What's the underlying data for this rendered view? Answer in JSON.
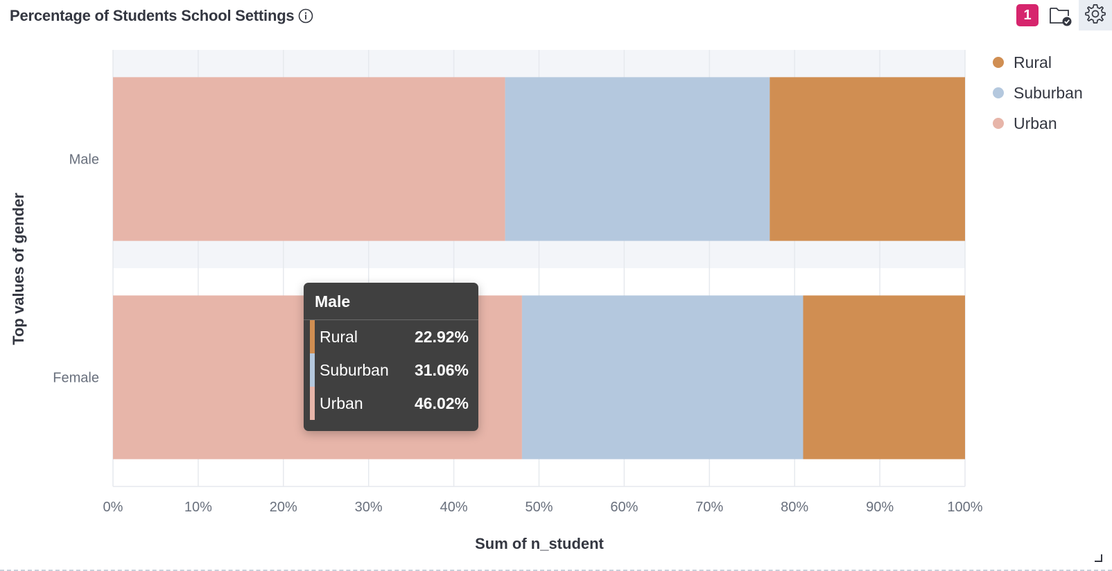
{
  "panel": {
    "title": "Percentage of Students School Settings",
    "notification_count": "1"
  },
  "icons": {
    "info": "info-icon",
    "folder": "folder-check-icon",
    "settings": "gear-icon"
  },
  "chart_data": {
    "type": "bar",
    "orientation": "horizontal",
    "stacked": true,
    "percentage": true,
    "categories": [
      "Male",
      "Female"
    ],
    "series": [
      {
        "name": "Urban",
        "color": "#e7b5a9",
        "values": [
          46.02,
          48.0
        ]
      },
      {
        "name": "Suburban",
        "color": "#b4c8de",
        "values": [
          31.06,
          33.0
        ]
      },
      {
        "name": "Rural",
        "color": "#d08e52",
        "values": [
          22.92,
          19.0
        ]
      }
    ],
    "xlabel": "Sum of n_student",
    "ylabel": "Top values of gender",
    "xlim": [
      0,
      100
    ],
    "x_ticks": [
      "0%",
      "10%",
      "20%",
      "30%",
      "40%",
      "50%",
      "60%",
      "70%",
      "80%",
      "90%",
      "100%"
    ],
    "grid": true,
    "legend_position": "top-right"
  },
  "legend": [
    {
      "label": "Rural",
      "color": "#d08e52"
    },
    {
      "label": "Suburban",
      "color": "#b4c8de"
    },
    {
      "label": "Urban",
      "color": "#e7b5a9"
    }
  ],
  "tooltip": {
    "title": "Male",
    "rows": [
      {
        "label": "Rural",
        "value": "22.92%",
        "color": "#d08e52"
      },
      {
        "label": "Suburban",
        "value": "31.06%",
        "color": "#b4c8de"
      },
      {
        "label": "Urban",
        "value": "46.02%",
        "color": "#e7b5a9"
      }
    ]
  }
}
